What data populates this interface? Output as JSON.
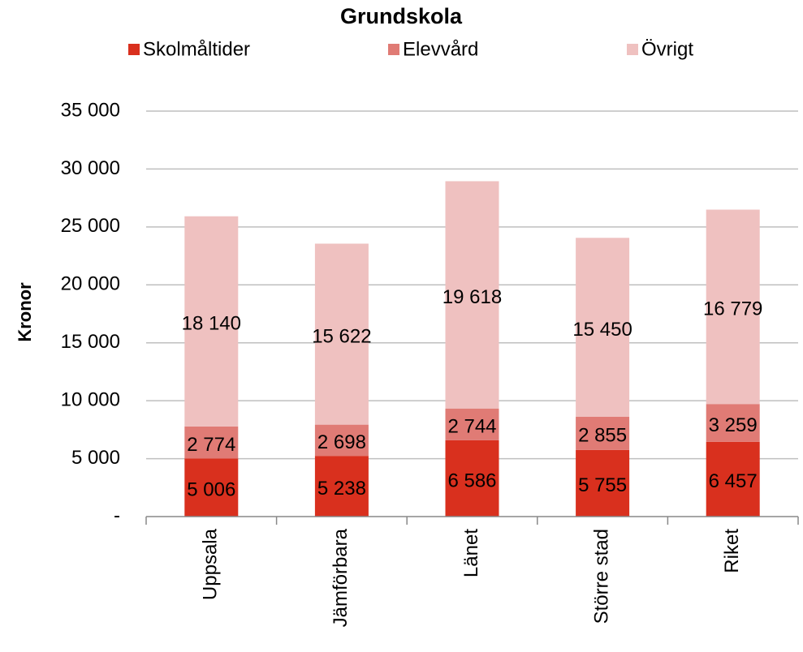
{
  "chart_data": {
    "type": "stacked_bar",
    "title": "Grundskola",
    "y_label": "Kronor",
    "categories": [
      "Uppsala",
      "Jämförbara",
      "Länet",
      "Större stad",
      "Riket"
    ],
    "series": [
      {
        "name": "Skolmåltider",
        "color": "#d9301e",
        "values": [
          5006,
          5238,
          6586,
          5755,
          6457
        ],
        "value_labels": [
          "5 006",
          "5 238",
          "6 586",
          "5 755",
          "6 457"
        ]
      },
      {
        "name": "Elevvård",
        "color": "#e07b75",
        "values": [
          2774,
          2698,
          2744,
          2855,
          3259
        ],
        "value_labels": [
          "2 774",
          "2 698",
          "2 744",
          "2 855",
          "3 259"
        ]
      },
      {
        "name": "Övrigt",
        "color": "#efc1c0",
        "values": [
          18140,
          15622,
          19618,
          15450,
          16779
        ],
        "value_labels": [
          "18 140",
          "15 622",
          "19 618",
          "15 450",
          "16 779"
        ]
      }
    ],
    "ylim": [
      0,
      35000
    ],
    "yticks": [
      {
        "value": 0,
        "label": "-"
      },
      {
        "value": 5000,
        "label": "5 000"
      },
      {
        "value": 10000,
        "label": "10 000"
      },
      {
        "value": 15000,
        "label": "15 000"
      },
      {
        "value": 20000,
        "label": "20 000"
      },
      {
        "value": 25000,
        "label": "25 000"
      },
      {
        "value": 30000,
        "label": "30 000"
      },
      {
        "value": 35000,
        "label": "35 000"
      }
    ],
    "grid": true,
    "legend": "top"
  }
}
